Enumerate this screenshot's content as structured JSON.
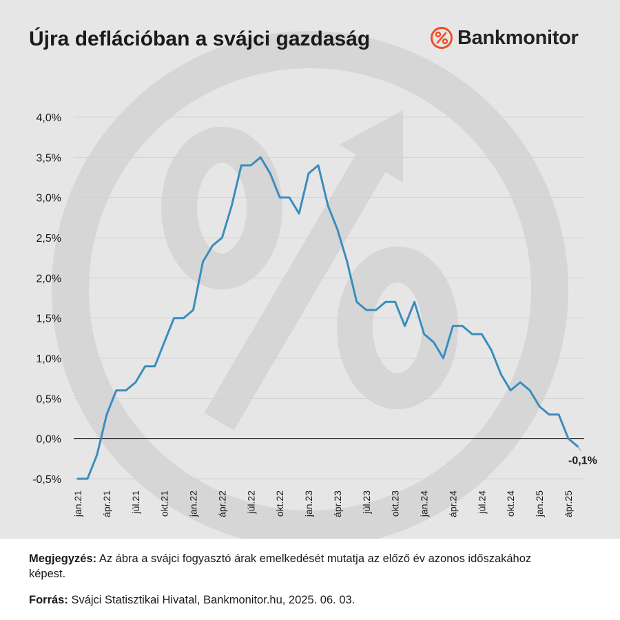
{
  "header": {
    "title": "Újra deflációban a svájci gazdaság",
    "logo_text": "Bankmonitor"
  },
  "colors": {
    "background_panel": "#e6e6e6",
    "line": "#3a8dbd",
    "watermark": "#d6d6d6",
    "logo_accent": "#f04e23"
  },
  "icons": {
    "logo": "percent-circle-icon",
    "watermark": "percent-arrow-watermark-icon"
  },
  "chart_data": {
    "type": "line",
    "title": "Újra deflációban a svájci gazdaság",
    "xlabel": "",
    "ylabel": "",
    "ylim": [
      -0.5,
      4.0
    ],
    "y_ticks": [
      -0.5,
      0.0,
      0.5,
      1.0,
      1.5,
      2.0,
      2.5,
      3.0,
      3.5,
      4.0
    ],
    "y_tick_labels": [
      "-0,5%",
      "0,0%",
      "0,5%",
      "1,0%",
      "1,5%",
      "2,0%",
      "2,5%",
      "3,0%",
      "3,5%",
      "4,0%"
    ],
    "x_tick_labels": [
      "jan.21",
      "ápr.21",
      "júl.21",
      "okt.21",
      "jan.22",
      "ápr.22",
      "júl.22",
      "okt.22",
      "jan.23",
      "ápr.23",
      "júl.23",
      "okt.23",
      "jan.24",
      "ápr.24",
      "júl.24",
      "okt.24",
      "jan.25",
      "ápr.25"
    ],
    "x_tick_every": 3,
    "grid": "horizontal",
    "legend": "none",
    "series": [
      {
        "values": [
          -0.5,
          -0.5,
          -0.2,
          0.3,
          0.6,
          0.6,
          0.7,
          0.9,
          0.9,
          1.2,
          1.5,
          1.5,
          1.6,
          2.2,
          2.4,
          2.5,
          2.9,
          3.4,
          3.4,
          3.5,
          3.3,
          3.0,
          3.0,
          2.8,
          3.3,
          3.4,
          2.9,
          2.6,
          2.2,
          1.7,
          1.6,
          1.6,
          1.7,
          1.7,
          1.4,
          1.7,
          1.3,
          1.2,
          1.0,
          1.4,
          1.4,
          1.3,
          1.3,
          1.1,
          0.8,
          0.6,
          0.7,
          0.6,
          0.4,
          0.3,
          0.3,
          0.0,
          -0.1
        ]
      }
    ],
    "annotations": [
      {
        "text": "-0,1%",
        "point": "last"
      }
    ]
  },
  "footer": {
    "note_label": "Megjegyzés:",
    "note_text": "Az ábra a svájci fogyasztó árak emelkedését mutatja az előző év azonos időszakához képest.",
    "source_label": "Forrás:",
    "source_text": "Svájci Statisztikai Hivatal, Bankmonitor.hu, 2025. 06. 03."
  }
}
